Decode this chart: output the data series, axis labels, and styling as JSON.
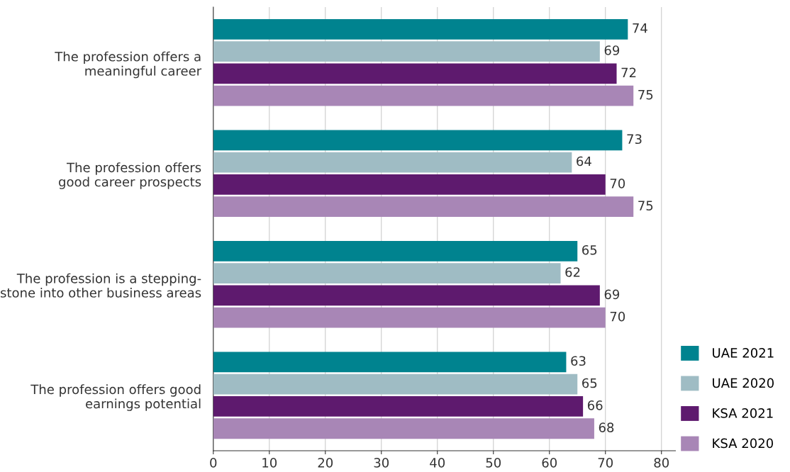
{
  "chart_data": {
    "type": "bar",
    "orientation": "horizontal",
    "categories": [
      "The profession offers a\nmeaningful career",
      "The profession offers\ngood career prospects",
      "The profession is a stepping-\nstone into other business areas",
      "The profession offers good\nearnings potential"
    ],
    "series": [
      {
        "name": "UAE 2021",
        "color": "#00838f",
        "values": [
          74,
          73,
          65,
          63
        ]
      },
      {
        "name": "UAE 2020",
        "color": "#9fbcc4",
        "values": [
          69,
          64,
          62,
          65
        ]
      },
      {
        "name": "KSA 2021",
        "color": "#5e1a6e",
        "values": [
          72,
          70,
          69,
          66
        ]
      },
      {
        "name": "KSA 2020",
        "color": "#a886b6",
        "values": [
          75,
          75,
          70,
          68
        ]
      }
    ],
    "xlim": [
      0,
      82.5
    ],
    "xticks": [
      0,
      10,
      20,
      30,
      40,
      50,
      60,
      70,
      80
    ],
    "grid": "x",
    "legend": "bottom right",
    "data_labels": true
  }
}
